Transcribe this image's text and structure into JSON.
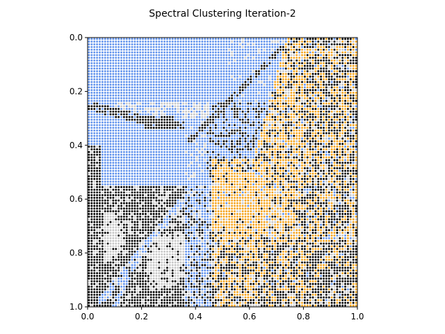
{
  "chart_data": {
    "type": "scatter",
    "title": "Spectral Clustering Iteration-2",
    "xlabel": "",
    "ylabel": "",
    "xlim": [
      0.0,
      1.0
    ],
    "ylim": [
      1.0,
      0.0
    ],
    "y_inverted": true,
    "grid": false,
    "legend": "none",
    "xticks": [
      "0.0",
      "0.2",
      "0.4",
      "0.6",
      "0.8",
      "1.0"
    ],
    "yticks": [
      "0.0",
      "0.2",
      "0.4",
      "0.6",
      "0.8",
      "1.0"
    ],
    "point_grid": {
      "columns": 100,
      "rows": 100,
      "spacing": 0.01
    },
    "clusters": [
      {
        "id": 0,
        "color": "#6495ed",
        "region": "upper-left sky and diagonal bands"
      },
      {
        "id": 1,
        "color": "#f5a623",
        "region": "right side, lower middle"
      },
      {
        "id": 2,
        "color": "#000000",
        "region": "lower-left and scattered right"
      },
      {
        "id": 3,
        "color": "#c8c8c8",
        "region": "lower-left light patches"
      }
    ]
  }
}
